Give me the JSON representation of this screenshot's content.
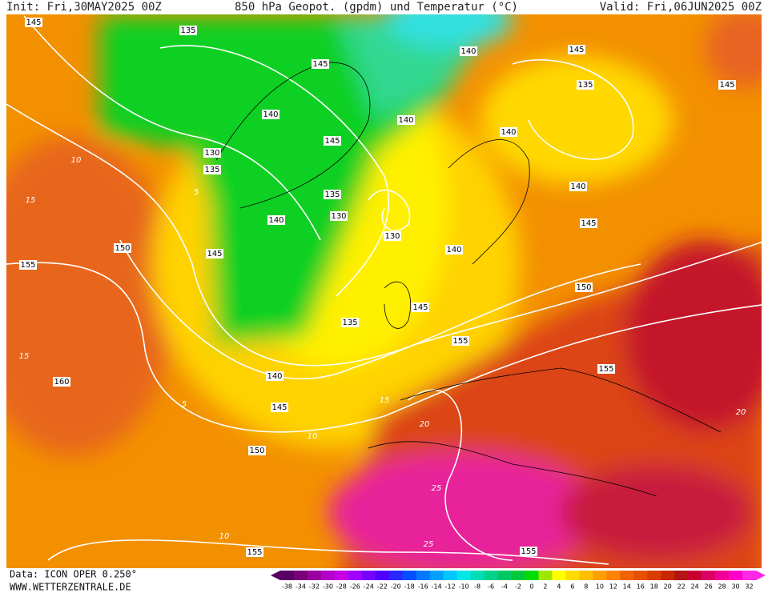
{
  "header": {
    "init": "Init: Fri,30MAY2025 00Z",
    "title": "850 hPa Geopot. (gpdm) und Temperatur (°C)",
    "valid": "Valid: Fri,06JUN2025 00Z"
  },
  "footer": {
    "data": "Data: ICON OPER 0.250°",
    "site": "WWW.WETTERZENTRALE.DE"
  },
  "contour_labels": [
    145,
    135,
    145,
    140,
    145,
    145,
    135,
    140,
    140,
    140,
    145,
    130,
    135,
    140,
    135,
    130,
    140,
    145,
    130,
    150,
    145,
    140,
    155,
    150,
    145,
    135,
    155,
    155,
    140,
    160,
    145,
    150,
    155,
    155
  ],
  "temperature_labels": [
    10,
    5,
    15,
    15,
    10,
    5,
    20,
    25,
    25,
    20,
    15,
    10
  ],
  "legend": {
    "labels": [
      -38,
      -34,
      -32,
      -30,
      -28,
      -26,
      -24,
      -22,
      -20,
      -18,
      -16,
      -14,
      -12,
      -10,
      -8,
      -6,
      -4,
      -2,
      0,
      2,
      4,
      6,
      8,
      10,
      12,
      14,
      16,
      18,
      20,
      22,
      24,
      26,
      28,
      30,
      32
    ],
    "colors": [
      "#5a0064",
      "#7a007a",
      "#9a00a0",
      "#b400c8",
      "#c800e6",
      "#a000ff",
      "#7800ff",
      "#5000ff",
      "#2828ff",
      "#0050ff",
      "#0078ff",
      "#00a0ff",
      "#00c8ff",
      "#00e6e6",
      "#00dcb4",
      "#00d28c",
      "#00c864",
      "#00c83c",
      "#00dc00",
      "#a0e600",
      "#ffff00",
      "#ffdc00",
      "#ffbe00",
      "#ffa000",
      "#ff8200",
      "#f06400",
      "#e65000",
      "#dc3c00",
      "#c82800",
      "#b41414",
      "#c80032",
      "#dc0064",
      "#f00096",
      "#ff00c8",
      "#ff28e6"
    ]
  }
}
